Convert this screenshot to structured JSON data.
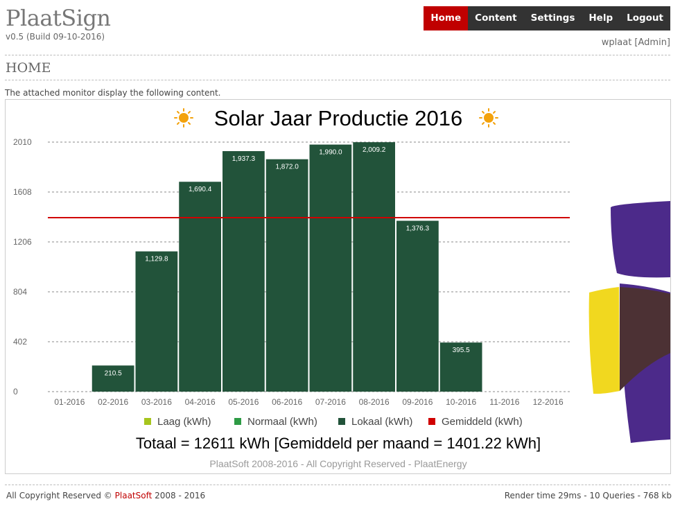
{
  "app": {
    "title": "PlaatSign",
    "version": "v0.5 (Build 09-10-2016)"
  },
  "nav": [
    {
      "label": "Home",
      "active": true
    },
    {
      "label": "Content",
      "active": false
    },
    {
      "label": "Settings",
      "active": false
    },
    {
      "label": "Help",
      "active": false
    },
    {
      "label": "Logout",
      "active": false
    }
  ],
  "user": "wplaat [Admin]",
  "page": {
    "heading": "HOME",
    "intro": "The attached monitor display the following content."
  },
  "colors": {
    "bars": "#22533a",
    "average": "#d00000",
    "laag": "#a6c51d",
    "normaal": "#2e9b45",
    "lokaal": "#22533a",
    "brand": "#c00000"
  },
  "chart_data": {
    "type": "bar",
    "title": "Solar Jaar Productie 2016",
    "categories": [
      "01-2016",
      "02-2016",
      "03-2016",
      "04-2016",
      "05-2016",
      "06-2016",
      "07-2016",
      "08-2016",
      "09-2016",
      "10-2016",
      "11-2016",
      "12-2016"
    ],
    "series": [
      {
        "name": "Lokaal (kWh)",
        "values": [
          null,
          210.5,
          1129.8,
          1690.4,
          1937.3,
          1872.0,
          1990.0,
          2009.2,
          1376.3,
          395.5,
          null,
          null
        ],
        "labels": [
          "",
          "210.5",
          "1,129.8",
          "1,690.4",
          "1,937.3",
          "1,872.0",
          "1,990.0",
          "2,009.2",
          "1,376.3",
          "395.5",
          "",
          ""
        ]
      }
    ],
    "average": 1401.22,
    "yticks": [
      0,
      402,
      804,
      1206,
      1608,
      2010
    ],
    "ylim": [
      0,
      2010
    ],
    "legend": [
      "Laag (kWh)",
      "Normaal (kWh)",
      "Lokaal (kWh)",
      "Gemiddeld (kWh)"
    ],
    "total_text": "Totaal = 12611 kWh [Gemiddeld per maand = 1401.22 kWh]",
    "copyright_text": "PlaatSoft 2008-2016 - All Copyright Reserved - PlaatEnergy"
  },
  "footer": {
    "prefix": "All Copyright Reserved ©",
    "brand": "PlaatSoft",
    "years": "2008 - 2016",
    "stats": "Render time 29ms - 10 Queries - 768 kb"
  }
}
